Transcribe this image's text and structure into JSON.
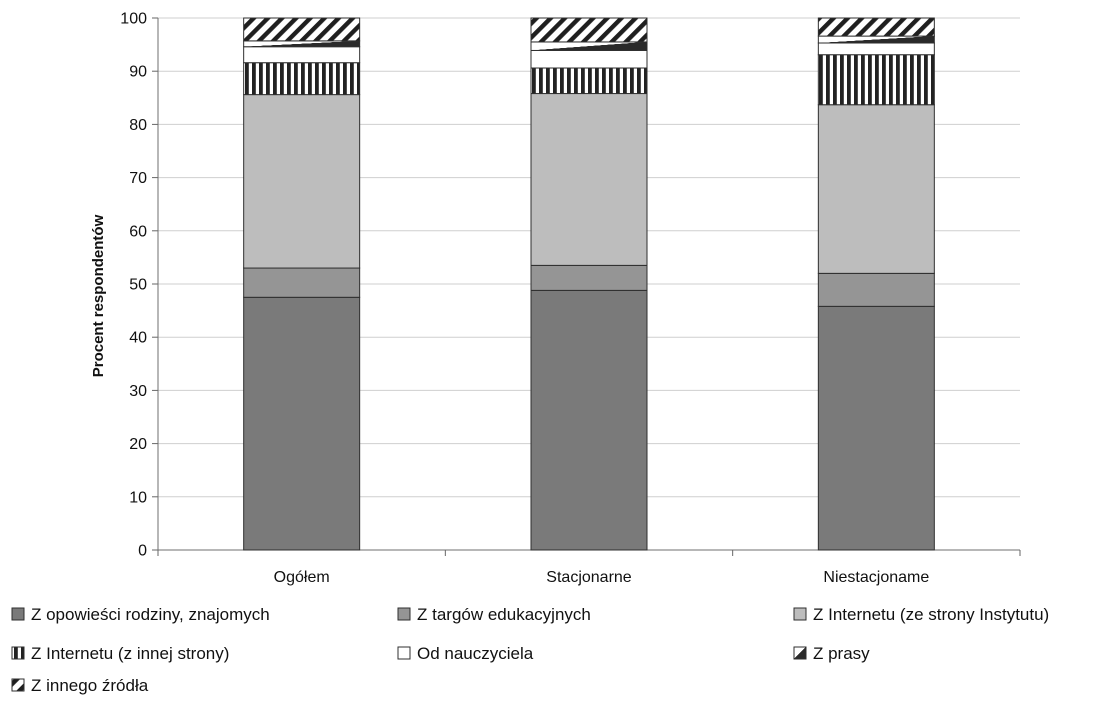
{
  "chart_data": {
    "type": "bar",
    "stacked": true,
    "title": "",
    "xlabel": "",
    "ylabel": "Procent respondentów",
    "ylim": [
      0,
      100
    ],
    "yticks": [
      0,
      10,
      20,
      30,
      40,
      50,
      60,
      70,
      80,
      90,
      100
    ],
    "grid": true,
    "legend_position": "bottom",
    "categories": [
      "Ogółem",
      "Stacjonarne",
      "Niestacjonarne"
    ],
    "category_labels": [
      "Ogółem",
      "Stacjonarne",
      "Niestacjoname"
    ],
    "series": [
      {
        "name": "Z opowieści rodziny, znajomych",
        "values": [
          47.5,
          48.8,
          45.8
        ],
        "color": "#7a7a7a",
        "pattern": "solid-dark"
      },
      {
        "name": "Z targów edukacyjnych",
        "values": [
          5.5,
          4.7,
          6.2
        ],
        "color": "#959595",
        "pattern": "solid-medium"
      },
      {
        "name": "Z Internetu (ze strony Instytutu)",
        "values": [
          32.6,
          32.3,
          31.7
        ],
        "color": "#bdbdbd",
        "pattern": "solid-light"
      },
      {
        "name": "Z Internetu (z innej strony)",
        "values": [
          6.0,
          4.8,
          9.4
        ],
        "color": "#222222",
        "pattern": "vertical-stripes"
      },
      {
        "name": "Od nauczyciela",
        "values": [
          3.0,
          3.3,
          2.2
        ],
        "color": "#ffffff",
        "pattern": "white"
      },
      {
        "name": "Z prasy",
        "values": [
          1.1,
          1.6,
          1.3
        ],
        "color": "#2a2a2a",
        "pattern": "half-fill"
      },
      {
        "name": "Z innego źródła",
        "values": [
          4.3,
          4.5,
          3.4
        ],
        "color": "#1f1f1f",
        "pattern": "diagonal-stripes"
      }
    ]
  }
}
